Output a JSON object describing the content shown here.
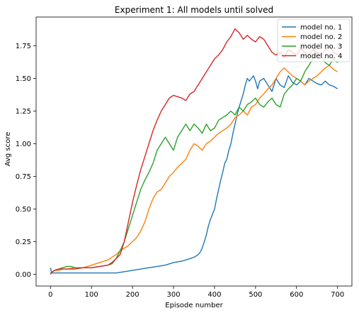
{
  "chart_data": {
    "type": "line",
    "title": "Experiment 1: All models until solved",
    "xlabel": "Episode number",
    "ylabel": "Avg score",
    "xlim": [
      -35,
      735
    ],
    "ylim": [
      -0.09,
      1.97
    ],
    "xticks": [
      0,
      100,
      200,
      300,
      400,
      500,
      600,
      700
    ],
    "yticks": [
      0.0,
      0.25,
      0.5,
      0.75,
      1.0,
      1.25,
      1.5,
      1.75
    ],
    "ytick_labels": [
      "0.00",
      "0.25",
      "0.50",
      "0.75",
      "1.00",
      "1.25",
      "1.50",
      "1.75"
    ],
    "grid": false,
    "legend_position": "top-right",
    "series": [
      {
        "name": "model no. 1",
        "color": "#1f77b4",
        "x": [
          0,
          3,
          6,
          10,
          20,
          40,
          60,
          80,
          100,
          120,
          140,
          160,
          180,
          200,
          220,
          240,
          260,
          280,
          300,
          320,
          340,
          350,
          360,
          365,
          370,
          375,
          380,
          385,
          390,
          395,
          400,
          405,
          410,
          415,
          420,
          425,
          430,
          435,
          440,
          445,
          450,
          455,
          460,
          465,
          470,
          475,
          480,
          485,
          490,
          495,
          500,
          505,
          510,
          520,
          530,
          540,
          550,
          560,
          570,
          580,
          590,
          600,
          610,
          620,
          630,
          640,
          650,
          660,
          670,
          680,
          690,
          700
        ],
        "y": [
          0.05,
          0.01,
          0.01,
          0.01,
          0.01,
          0.01,
          0.01,
          0.01,
          0.01,
          0.01,
          0.01,
          0.01,
          0.02,
          0.03,
          0.04,
          0.05,
          0.06,
          0.07,
          0.09,
          0.1,
          0.12,
          0.13,
          0.15,
          0.17,
          0.2,
          0.25,
          0.3,
          0.37,
          0.42,
          0.46,
          0.5,
          0.58,
          0.65,
          0.72,
          0.78,
          0.85,
          0.88,
          0.95,
          1.0,
          1.08,
          1.15,
          1.22,
          1.28,
          1.33,
          1.38,
          1.45,
          1.5,
          1.48,
          1.5,
          1.52,
          1.48,
          1.42,
          1.48,
          1.5,
          1.45,
          1.4,
          1.5,
          1.45,
          1.43,
          1.52,
          1.47,
          1.45,
          1.48,
          1.45,
          1.5,
          1.48,
          1.46,
          1.45,
          1.48,
          1.45,
          1.44,
          1.42
        ]
      },
      {
        "name": "model no. 2",
        "color": "#ff7f0e",
        "x": [
          0,
          5,
          10,
          20,
          30,
          40,
          60,
          80,
          100,
          120,
          140,
          160,
          170,
          180,
          190,
          200,
          210,
          220,
          230,
          240,
          250,
          260,
          270,
          280,
          290,
          300,
          310,
          320,
          330,
          340,
          350,
          360,
          370,
          380,
          390,
          400,
          410,
          420,
          430,
          440,
          450,
          460,
          470,
          480,
          490,
          500,
          510,
          520,
          530,
          540,
          550,
          560,
          570,
          580,
          590,
          600,
          610,
          620,
          630,
          640,
          650,
          660,
          670,
          680,
          690,
          700
        ],
        "y": [
          0.01,
          0.02,
          0.03,
          0.03,
          0.04,
          0.04,
          0.05,
          0.05,
          0.07,
          0.09,
          0.11,
          0.15,
          0.18,
          0.2,
          0.22,
          0.25,
          0.28,
          0.33,
          0.4,
          0.5,
          0.58,
          0.63,
          0.65,
          0.7,
          0.75,
          0.78,
          0.82,
          0.85,
          0.88,
          0.95,
          1.0,
          0.98,
          0.95,
          1.0,
          1.02,
          1.05,
          1.08,
          1.1,
          1.12,
          1.15,
          1.2,
          1.22,
          1.25,
          1.22,
          1.28,
          1.3,
          1.35,
          1.38,
          1.42,
          1.45,
          1.5,
          1.55,
          1.58,
          1.55,
          1.52,
          1.5,
          1.48,
          1.45,
          1.48,
          1.5,
          1.52,
          1.55,
          1.58,
          1.6,
          1.57,
          1.55
        ]
      },
      {
        "name": "model no. 3",
        "color": "#2ca02c",
        "x": [
          0,
          5,
          10,
          20,
          30,
          40,
          50,
          60,
          80,
          100,
          120,
          140,
          150,
          160,
          170,
          180,
          190,
          200,
          210,
          220,
          230,
          240,
          250,
          260,
          270,
          280,
          290,
          300,
          310,
          320,
          330,
          340,
          350,
          360,
          370,
          380,
          390,
          400,
          410,
          420,
          430,
          440,
          450,
          460,
          470,
          480,
          490,
          500,
          510,
          520,
          530,
          540,
          550,
          560,
          570,
          580,
          590,
          600,
          610,
          620,
          630,
          640,
          650,
          660,
          670,
          680,
          690,
          700
        ],
        "y": [
          0.01,
          0.02,
          0.03,
          0.04,
          0.05,
          0.06,
          0.06,
          0.05,
          0.05,
          0.05,
          0.06,
          0.07,
          0.08,
          0.12,
          0.18,
          0.25,
          0.35,
          0.45,
          0.55,
          0.65,
          0.72,
          0.78,
          0.85,
          0.95,
          1.0,
          1.05,
          1.0,
          0.95,
          1.05,
          1.1,
          1.15,
          1.1,
          1.15,
          1.12,
          1.08,
          1.15,
          1.1,
          1.12,
          1.18,
          1.2,
          1.22,
          1.25,
          1.22,
          1.28,
          1.25,
          1.3,
          1.32,
          1.35,
          1.3,
          1.28,
          1.32,
          1.35,
          1.3,
          1.28,
          1.38,
          1.42,
          1.45,
          1.5,
          1.48,
          1.55,
          1.6,
          1.65,
          1.7,
          1.68,
          1.62,
          1.6,
          1.65,
          1.62
        ]
      },
      {
        "name": "model no. 4",
        "color": "#d62728",
        "x": [
          0,
          5,
          10,
          20,
          40,
          60,
          80,
          100,
          120,
          140,
          150,
          160,
          170,
          180,
          190,
          200,
          210,
          220,
          230,
          240,
          250,
          260,
          270,
          280,
          290,
          300,
          310,
          320,
          330,
          340,
          350,
          360,
          370,
          380,
          390,
          400,
          410,
          420,
          430,
          440,
          450,
          460,
          470,
          480,
          490,
          500,
          510,
          520,
          530,
          540,
          550,
          560,
          570,
          580,
          590,
          600,
          610,
          620,
          630,
          640,
          650,
          660,
          670,
          680,
          690,
          700
        ],
        "y": [
          0.0,
          0.02,
          0.03,
          0.04,
          0.04,
          0.04,
          0.05,
          0.05,
          0.06,
          0.07,
          0.09,
          0.12,
          0.15,
          0.25,
          0.4,
          0.55,
          0.68,
          0.8,
          0.9,
          1.0,
          1.1,
          1.18,
          1.25,
          1.3,
          1.35,
          1.37,
          1.36,
          1.35,
          1.33,
          1.38,
          1.4,
          1.45,
          1.5,
          1.55,
          1.6,
          1.65,
          1.68,
          1.72,
          1.78,
          1.82,
          1.88,
          1.85,
          1.8,
          1.83,
          1.8,
          1.78,
          1.82,
          1.8,
          1.75,
          1.7,
          1.68,
          1.7,
          1.66,
          1.72,
          1.7,
          1.68,
          1.73,
          1.7,
          1.68,
          1.72,
          1.7,
          1.68,
          1.72,
          1.75,
          1.7,
          1.68
        ]
      }
    ]
  }
}
